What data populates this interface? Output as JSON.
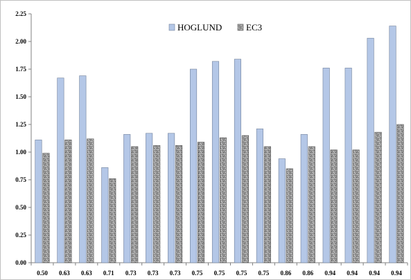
{
  "chart_data": {
    "type": "bar",
    "title": "",
    "xlabel": "",
    "ylabel": "",
    "ylim": [
      0,
      2.25
    ],
    "y_ticks": [
      "0.00",
      "0.25",
      "0.50",
      "0.75",
      "1.00",
      "1.25",
      "1.50",
      "1.75",
      "2.00",
      "2.25"
    ],
    "grid": false,
    "legend_position": "top-center",
    "categories": [
      "0.50",
      "0.63",
      "0.63",
      "0.71",
      "0.73",
      "0.73",
      "0.73",
      "0.75",
      "0.75",
      "0.75",
      "0.75",
      "0.86",
      "0.86",
      "0.94",
      "0.94",
      "0.94",
      "0.94"
    ],
    "series": [
      {
        "name": "HOGLUND",
        "color": "#b4c7e7",
        "values": [
          1.11,
          1.67,
          1.69,
          0.86,
          1.16,
          1.17,
          1.17,
          1.75,
          1.82,
          1.84,
          1.21,
          0.94,
          1.16,
          1.76,
          1.76,
          2.03,
          2.14
        ]
      },
      {
        "name": "EC3",
        "color": "#8c8c8c",
        "values": [
          0.99,
          1.11,
          1.12,
          0.76,
          1.05,
          1.06,
          1.06,
          1.09,
          1.13,
          1.15,
          1.05,
          0.85,
          1.05,
          1.02,
          1.02,
          1.18,
          1.25
        ]
      }
    ]
  }
}
